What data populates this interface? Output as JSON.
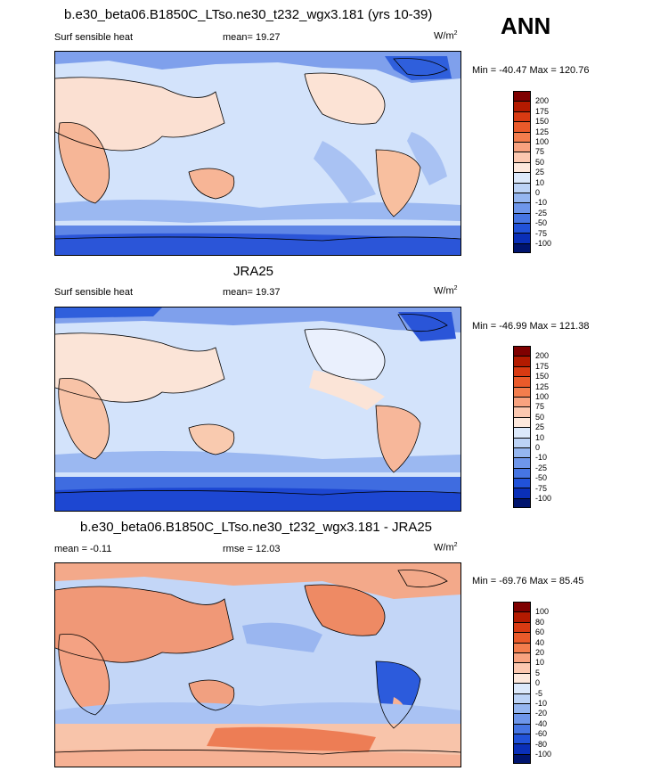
{
  "season": "ANN",
  "colors": {
    "deep_blue": "#1a3fd6",
    "mid_blue": "#6f93ee",
    "light_blue": "#cfe0fb",
    "cream": "#fce6da",
    "peach": "#f7b79a",
    "orange": "#ea6a3a",
    "coast": "#000000"
  },
  "panels": [
    {
      "title": "b.e30_beta06.B1850C_LTso.ne30_t232_wgx3.181 (yrs 10-39)",
      "left_label": "Surf sensible heat",
      "center_label": "mean=  19.27",
      "units": "W/m",
      "units_sup": "2",
      "minmax": "Min = -40.47 Max = 120.76",
      "levels": [
        "200",
        "175",
        "150",
        "125",
        "100",
        "75",
        "50",
        "25",
        "10",
        "0",
        "-10",
        "-25",
        "-50",
        "-75",
        "-100"
      ],
      "colors": [
        "#7f0000",
        "#b31a00",
        "#d83a12",
        "#ea5a2a",
        "#f37d4d",
        "#f8a27f",
        "#fcc8b0",
        "#fde8dc",
        "#dce9fb",
        "#bcd3f6",
        "#95b6f0",
        "#6e96ea",
        "#4675e3",
        "#2152d9",
        "#0a2fb8",
        "#00146e"
      ]
    },
    {
      "title": "JRA25",
      "left_label": "Surf sensible heat",
      "center_label": "mean=  19.37",
      "units": "W/m",
      "units_sup": "2",
      "minmax": "Min = -46.99 Max = 121.38",
      "levels": [
        "200",
        "175",
        "150",
        "125",
        "100",
        "75",
        "50",
        "25",
        "10",
        "0",
        "-10",
        "-25",
        "-50",
        "-75",
        "-100"
      ],
      "colors": [
        "#7f0000",
        "#b31a00",
        "#d83a12",
        "#ea5a2a",
        "#f37d4d",
        "#f8a27f",
        "#fcc8b0",
        "#fde8dc",
        "#dce9fb",
        "#bcd3f6",
        "#95b6f0",
        "#6e96ea",
        "#4675e3",
        "#2152d9",
        "#0a2fb8",
        "#00146e"
      ]
    },
    {
      "title": "b.e30_beta06.B1850C_LTso.ne30_t232_wgx3.181 - JRA25",
      "left_label": "mean =  -0.11",
      "center_label": "rmse =  12.03",
      "units": "W/m",
      "units_sup": "2",
      "minmax": "Min = -69.76 Max =  85.45",
      "levels": [
        "100",
        "80",
        "60",
        "40",
        "20",
        "10",
        "5",
        "0",
        "-5",
        "-10",
        "-20",
        "-40",
        "-60",
        "-80",
        "-100"
      ],
      "colors": [
        "#7f0000",
        "#b31a00",
        "#d83a12",
        "#ea5a2a",
        "#f37d4d",
        "#f8a27f",
        "#fcc8b0",
        "#fde8dc",
        "#dce9fb",
        "#bcd3f6",
        "#95b6f0",
        "#6e96ea",
        "#4675e3",
        "#2152d9",
        "#0a2fb8",
        "#00146e"
      ]
    }
  ]
}
